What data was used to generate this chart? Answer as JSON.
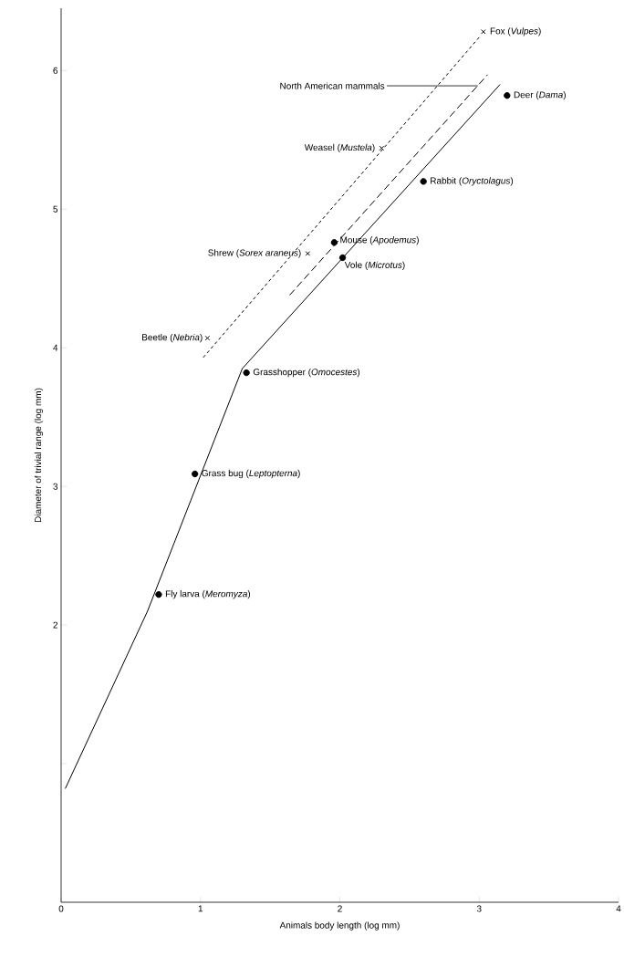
{
  "chart_data": {
    "type": "scatter",
    "xlabel": "Animals body length (log mm)",
    "ylabel": "Diameter of trivial range (log mm)",
    "xlim": [
      0,
      4
    ],
    "ylim": [
      0,
      6.45
    ],
    "xticks": [
      0,
      1,
      2,
      3,
      4
    ],
    "yticks": [
      {
        "value": 1,
        "label": null
      },
      2,
      3,
      4,
      5,
      6
    ],
    "series": [
      {
        "marker": "circle",
        "color": "#000000",
        "x": [
          3.2,
          2.6,
          1.96,
          2.02,
          1.33,
          0.96,
          0.7
        ],
        "values": [
          5.82,
          5.2,
          4.76,
          4.65,
          3.82,
          3.09,
          2.22
        ]
      },
      {
        "marker": "cross",
        "color": "#000000",
        "x": [
          3.03,
          2.3,
          1.77,
          1.05
        ],
        "values": [
          6.28,
          5.44,
          4.68,
          4.07
        ]
      },
      {
        "type": "line",
        "line_style": "solid",
        "color": "#000000",
        "x": [
          0.03,
          0.62,
          1.3,
          3.15
        ],
        "values": [
          0.82,
          2.1,
          3.85,
          5.9
        ]
      },
      {
        "type": "line",
        "line_style": "dashed",
        "color": "#000000",
        "x": [
          1.64,
          3.06
        ],
        "values": [
          4.38,
          5.97
        ]
      },
      {
        "type": "line",
        "line_style": "dotted",
        "color": "#000000",
        "x": [
          1.02,
          3.0
        ],
        "values": [
          3.93,
          6.24
        ]
      }
    ],
    "annotations": [
      {
        "text": "Fox (*Vulpes*)",
        "x": 3.03,
        "y": 6.28
      },
      {
        "text": "North American mammals",
        "x": 2.99,
        "y": 5.89
      },
      {
        "text": "Deer (*Dama*)",
        "x": 3.2,
        "y": 5.82
      },
      {
        "text": "Weasel (*Mustela*)",
        "x": 2.3,
        "y": 5.44
      },
      {
        "text": "Rabbit (*Oryctolagus*)",
        "x": 2.6,
        "y": 5.2
      },
      {
        "text": "Mouse (*Apodemus*)",
        "x": 1.96,
        "y": 4.76
      },
      {
        "text": "Shrew (*Sorex araneus*)",
        "x": 1.77,
        "y": 4.68
      },
      {
        "text": "Vole (*Microtus*)",
        "x": 2.02,
        "y": 4.65
      },
      {
        "text": "Beetle (*Nebria*)",
        "x": 1.05,
        "y": 4.07
      },
      {
        "text": "Grasshopper (*Omocestes*)",
        "x": 1.33,
        "y": 3.82
      },
      {
        "text": "Grass bug (*Leptopterna*)",
        "x": 0.96,
        "y": 3.09
      },
      {
        "text": "Fly larva (*Meromyza*)",
        "x": 0.7,
        "y": 2.22
      }
    ]
  }
}
